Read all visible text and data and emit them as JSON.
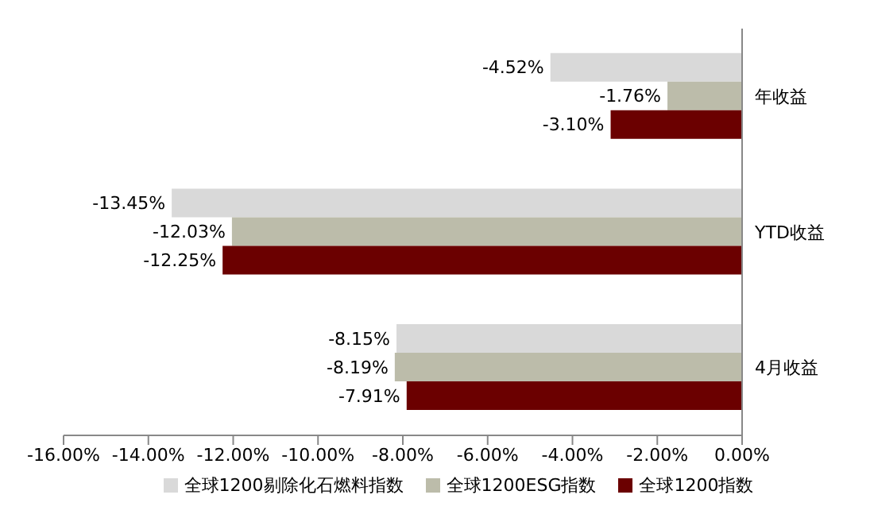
{
  "chart_data": {
    "type": "bar",
    "orientation": "horizontal",
    "categories": [
      "年收益",
      "YTD收益",
      "4月收益"
    ],
    "series": [
      {
        "name": "全球1200剔除化石燃料指数",
        "color": "#d9d9d9",
        "values": [
          -4.52,
          -13.45,
          -8.15
        ],
        "value_labels": [
          "-4.52%",
          "-13.45%",
          "-8.15%"
        ]
      },
      {
        "name": "全球1200ESG指数",
        "color": "#bcbcaa",
        "values": [
          -1.76,
          -12.03,
          -8.19
        ],
        "value_labels": [
          "-1.76%",
          "-12.03%",
          "-8.19%"
        ]
      },
      {
        "name": "全球1200指数",
        "color": "#6b0000",
        "values": [
          -3.1,
          -12.25,
          -7.91
        ],
        "value_labels": [
          "-3.10%",
          "-12.25%",
          "-7.91%"
        ]
      }
    ],
    "xlim": [
      -16,
      0
    ],
    "xticks": [
      {
        "value": -16,
        "label": "-16.00%"
      },
      {
        "value": -14,
        "label": "-14.00%"
      },
      {
        "value": -12,
        "label": "-12.00%"
      },
      {
        "value": -10,
        "label": "-10.00%"
      },
      {
        "value": -8,
        "label": "-8.00%"
      },
      {
        "value": -6,
        "label": "-6.00%"
      },
      {
        "value": -4,
        "label": "-4.00%"
      },
      {
        "value": -2,
        "label": "-2.00%"
      },
      {
        "value": 0,
        "label": "0.00%"
      }
    ],
    "grid": false,
    "legend": "bottom"
  }
}
